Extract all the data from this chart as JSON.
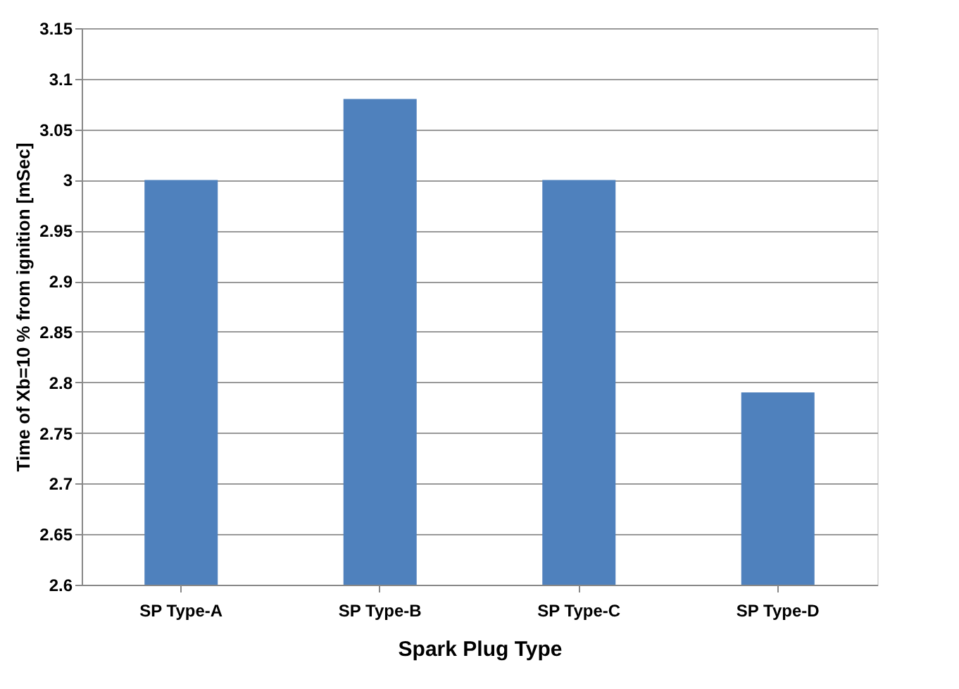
{
  "chart_data": {
    "type": "bar",
    "xlabel": "Spark Plug Type",
    "ylabel": "Time of Xb=10 % from ignition  [mSec]",
    "categories": [
      "SP Type-A",
      "SP Type-B",
      "SP Type-C",
      "SP Type-D"
    ],
    "values": [
      3.0,
      3.08,
      3.0,
      2.79
    ],
    "color": "#4f81bd",
    "ylim": [
      2.6,
      3.15
    ],
    "yticks": [
      2.6,
      2.65,
      2.7,
      2.75,
      2.8,
      2.85,
      2.9,
      2.95,
      3,
      3.05,
      3.1,
      3.15
    ],
    "grid": "y"
  }
}
